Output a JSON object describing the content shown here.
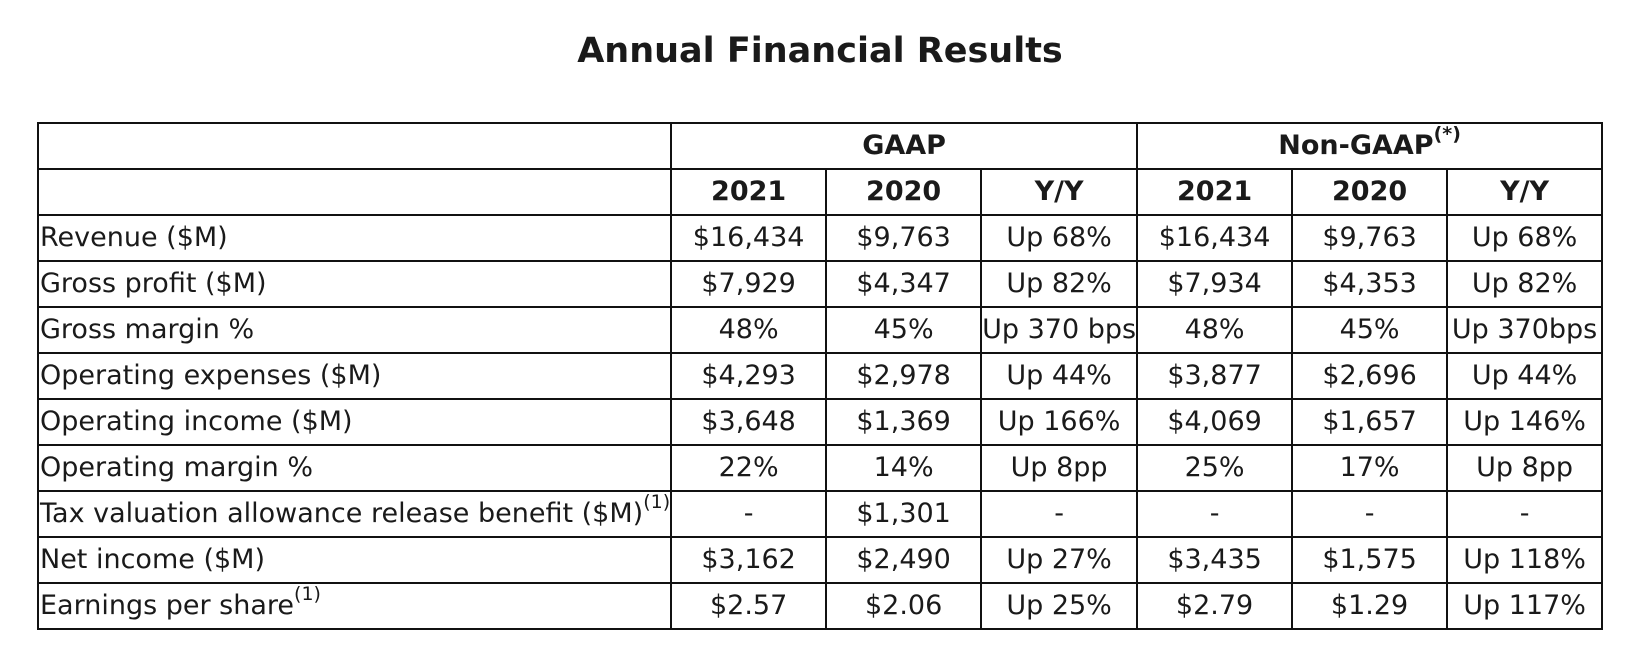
{
  "title": "Annual Financial Results",
  "groups": [
    {
      "label": "GAAP",
      "sup": ""
    },
    {
      "label": "Non-GAAP",
      "sup": "(*)"
    }
  ],
  "subheaders": [
    "2021",
    "2020",
    "Y/Y",
    "2021",
    "2020",
    "Y/Y"
  ],
  "rows": [
    {
      "label": "Revenue ($M)",
      "sup": "",
      "values": [
        "$16,434",
        "$9,763",
        "Up 68%",
        "$16,434",
        "$9,763",
        "Up 68%"
      ]
    },
    {
      "label": "Gross profit ($M)",
      "sup": "",
      "values": [
        "$7,929",
        "$4,347",
        "Up 82%",
        "$7,934",
        "$4,353",
        "Up 82%"
      ]
    },
    {
      "label": "Gross margin %",
      "sup": "",
      "values": [
        "48%",
        "45%",
        "Up 370 bps",
        "48%",
        "45%",
        "Up 370bps"
      ]
    },
    {
      "label": "Operating expenses ($M)",
      "sup": "",
      "values": [
        "$4,293",
        "$2,978",
        "Up 44%",
        "$3,877",
        "$2,696",
        "Up 44%"
      ]
    },
    {
      "label": "Operating income ($M)",
      "sup": "",
      "values": [
        "$3,648",
        "$1,369",
        "Up 166%",
        "$4,069",
        "$1,657",
        "Up 146%"
      ]
    },
    {
      "label": "Operating margin %",
      "sup": "",
      "values": [
        "22%",
        "14%",
        "Up 8pp",
        "25%",
        "17%",
        "Up 8pp"
      ]
    },
    {
      "label": "Tax valuation allowance release benefit ($M)",
      "sup": "(1)",
      "values": [
        "-",
        "$1,301",
        "-",
        "-",
        "-",
        "-"
      ]
    },
    {
      "label": "Net income ($M)",
      "sup": "",
      "values": [
        "$3,162",
        "$2,490",
        "Up 27%",
        "$3,435",
        "$1,575",
        "Up 118%"
      ]
    },
    {
      "label": "Earnings per share",
      "sup": "(1)",
      "values": [
        "$2.57",
        "$2.06",
        "Up 25%",
        "$2.79",
        "$1.29",
        "Up 117%"
      ]
    }
  ]
}
